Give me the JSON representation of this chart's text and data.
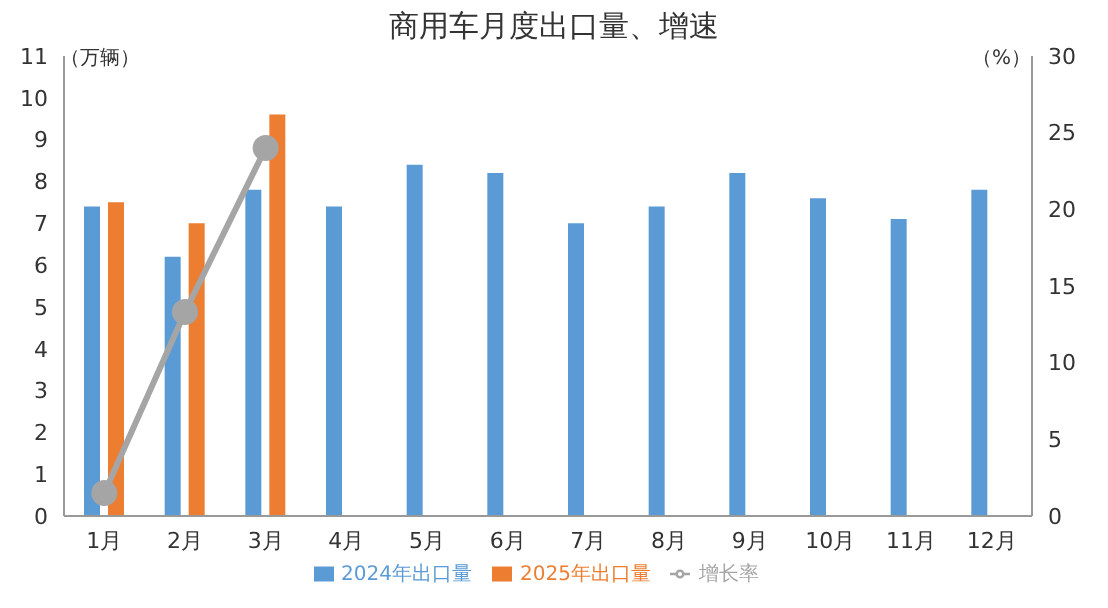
{
  "chart_data": {
    "type": "bar",
    "title": "商用车月度出口量、增速",
    "categories": [
      "1月",
      "2月",
      "3月",
      "4月",
      "5月",
      "6月",
      "7月",
      "8月",
      "9月",
      "10月",
      "11月",
      "12月"
    ],
    "series": [
      {
        "name": "2024年出口量",
        "color": "#5b9bd5",
        "values": [
          7.4,
          6.2,
          7.8,
          7.4,
          8.4,
          8.2,
          7.0,
          7.4,
          8.2,
          7.6,
          7.1,
          7.8
        ]
      },
      {
        "name": "2025年出口量",
        "color": "#ed7d31",
        "values": [
          7.5,
          7.0,
          9.6,
          null,
          null,
          null,
          null,
          null,
          null,
          null,
          null,
          null
        ]
      },
      {
        "name": "增长率",
        "type": "line",
        "axis": "y2",
        "color": "#a5a5a5",
        "marker": "circle",
        "values": [
          1.5,
          13.3,
          24.0,
          null,
          null,
          null,
          null,
          null,
          null,
          null,
          null,
          null
        ]
      }
    ],
    "ylabel": "（万辆）",
    "y2label": "（%）",
    "ylim": [
      0,
      11
    ],
    "yticks": [
      0,
      1,
      2,
      3,
      4,
      5,
      6,
      7,
      8,
      9,
      10,
      11
    ],
    "y2lim": [
      0,
      30
    ],
    "y2ticks": [
      0,
      5,
      10,
      15,
      20,
      25,
      30
    ],
    "grid": false,
    "legend": "bottom"
  }
}
